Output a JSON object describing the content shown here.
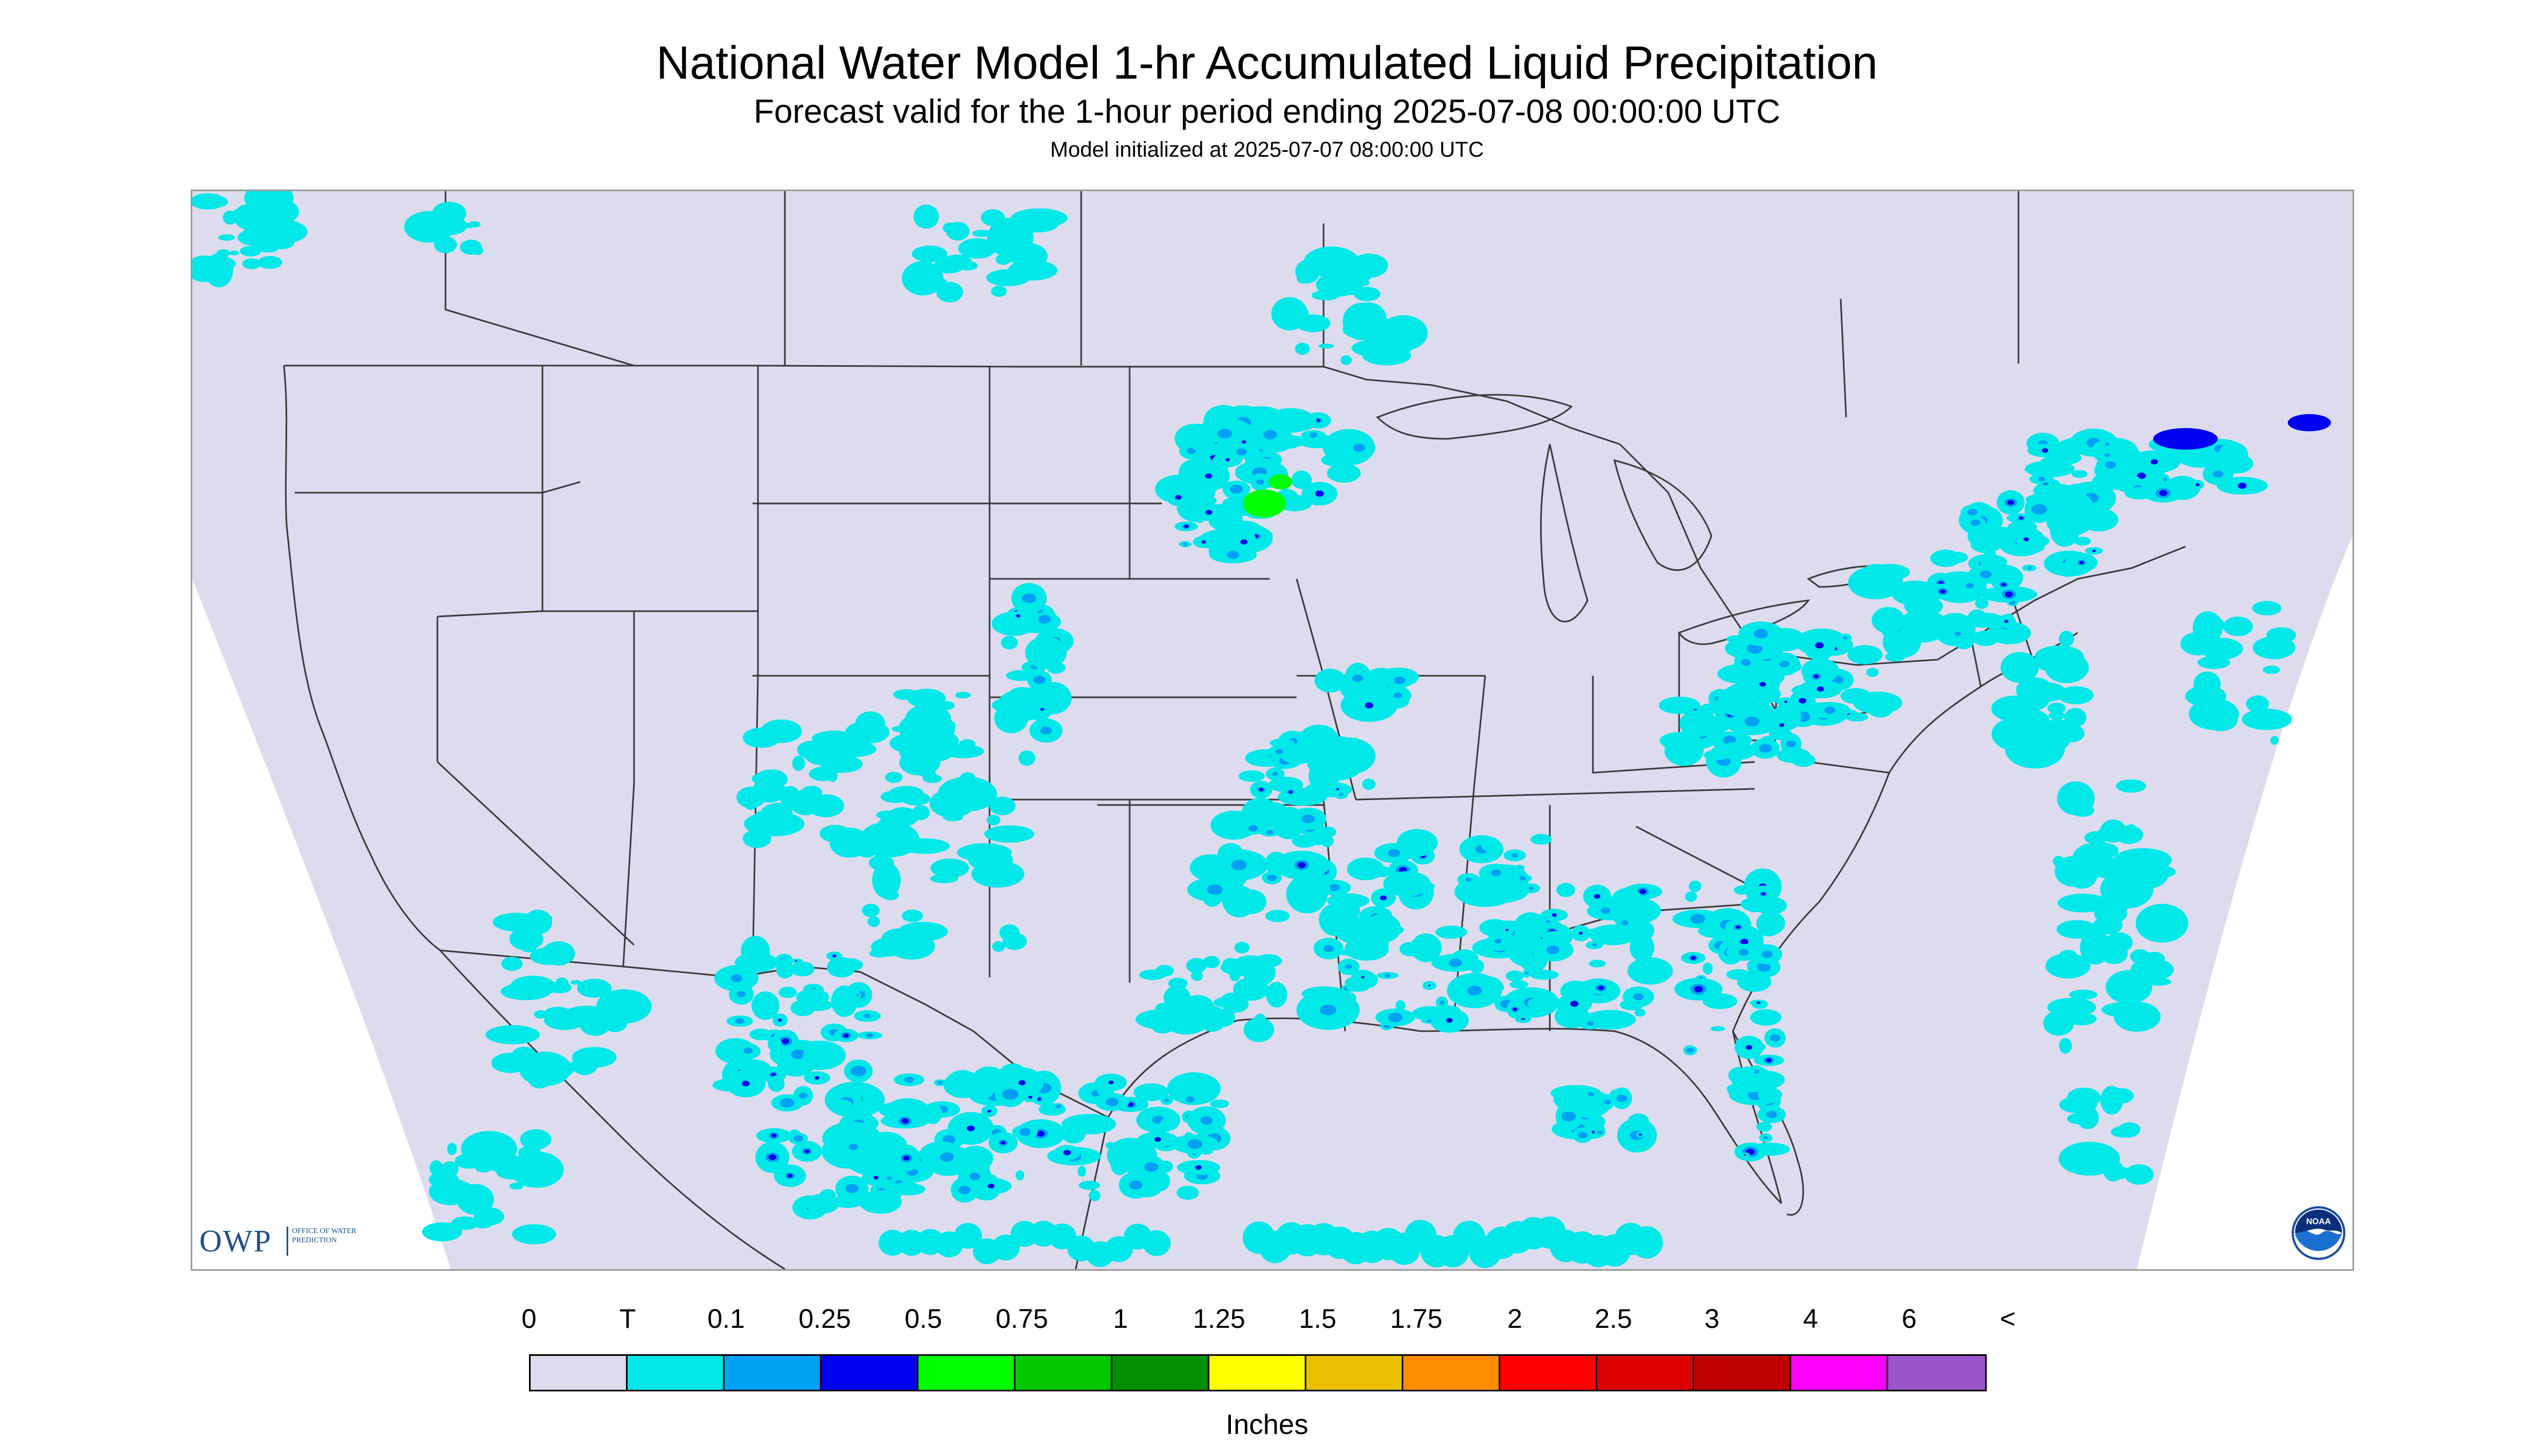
{
  "title": "National Water Model 1-hr Accumulated Liquid Precipitation",
  "subtitle": "Forecast valid for the 1-hour period ending 2025-07-08 00:00:00 UTC",
  "init_note": "Model initialized at 2025-07-07 08:00:00 UTC",
  "logo": {
    "owp_text": "OWP",
    "owp_sub": "OFFICE OF WATER PREDICTION",
    "noaa_text": "NOAA"
  },
  "legend": {
    "units": "Inches",
    "labels": [
      "0",
      "T",
      "0.1",
      "0.25",
      "0.5",
      "0.75",
      "1",
      "1.25",
      "1.5",
      "1.75",
      "2",
      "2.5",
      "3",
      "4",
      "6",
      "<"
    ],
    "colors": [
      "#dcdcee",
      "#00e8e8",
      "#00a0f5",
      "#0000f0",
      "#00ff00",
      "#00c800",
      "#009000",
      "#ffff00",
      "#e8c000",
      "#ff8c00",
      "#ff0000",
      "#dc0000",
      "#be0000",
      "#ff00ff",
      "#9955c9"
    ]
  },
  "map_colors": {
    "domain_fill": "#dcdcee",
    "outside_fill": "#ffffff",
    "trace": "#00e8e8",
    "light": "#00a0f5",
    "medium": "#0000f0",
    "heavy": "#00ff00",
    "border_line": "#3a3a3a"
  }
}
